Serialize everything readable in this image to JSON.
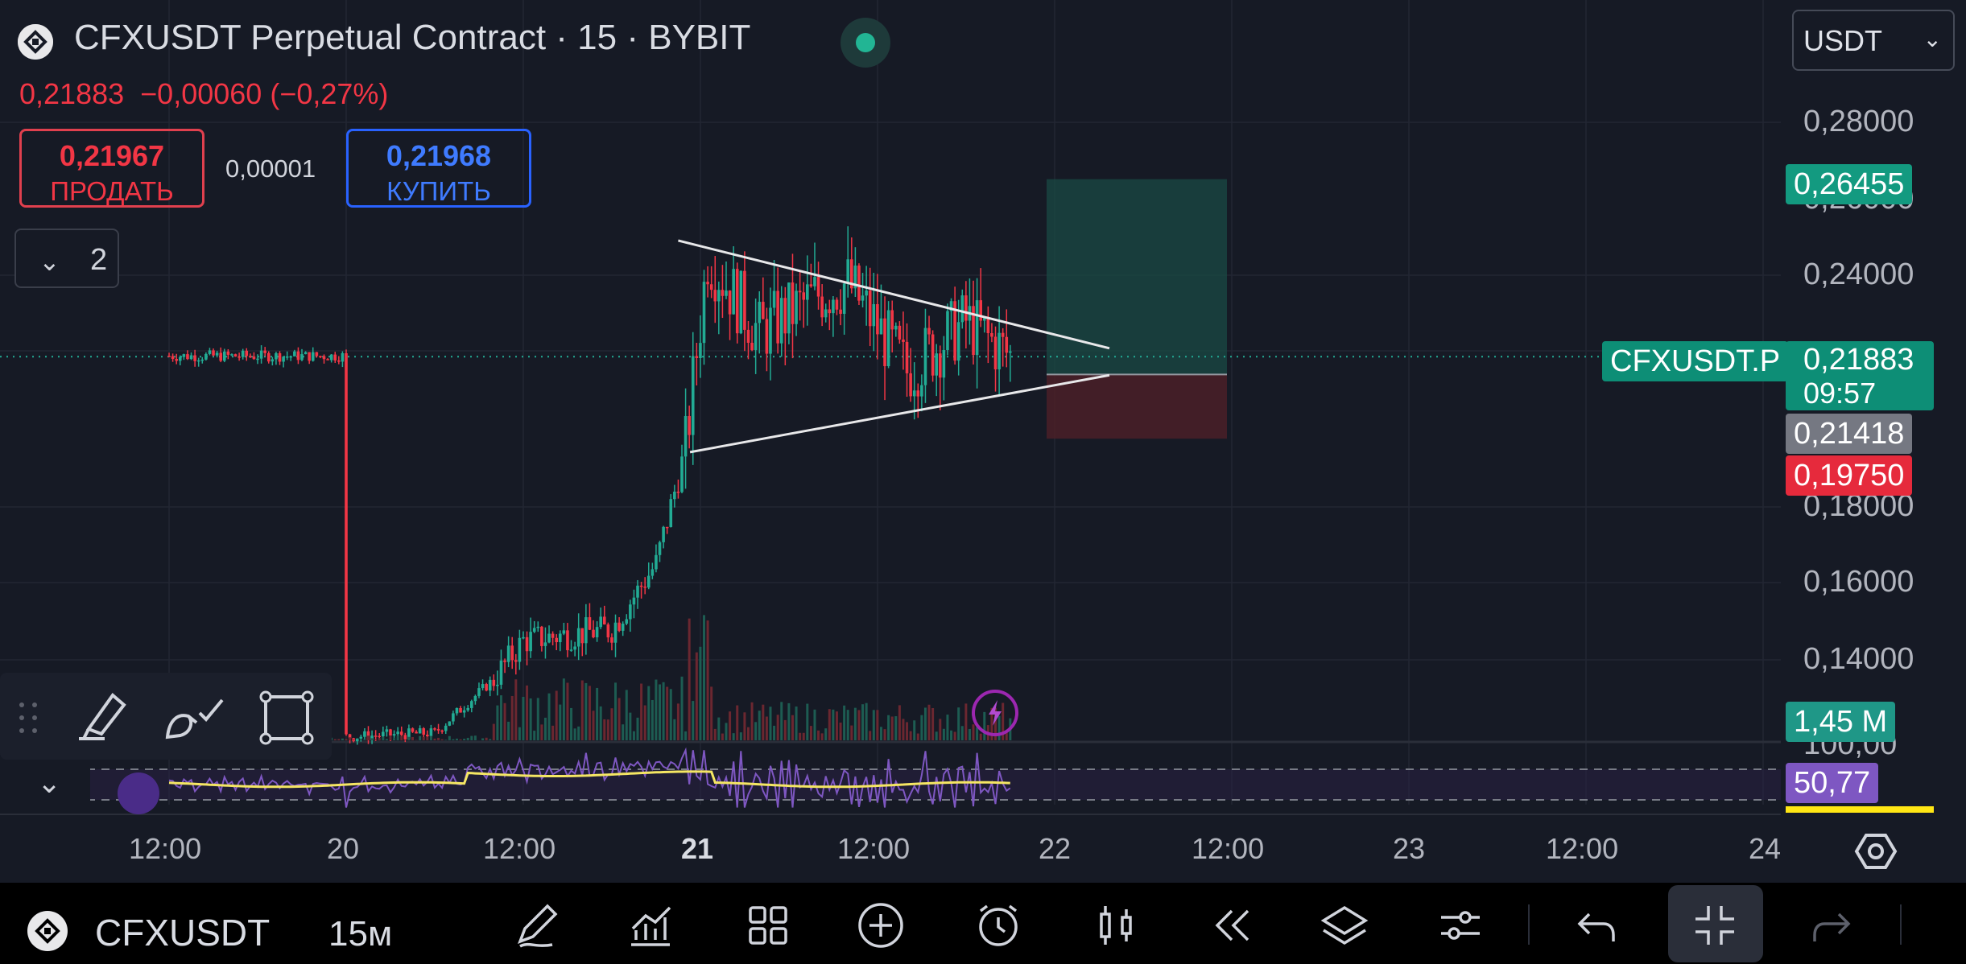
{
  "header": {
    "title": "CFXUSDT Perpetual Contract · 15 · BYBIT",
    "last_price": "0,21883",
    "change": "−0,00060 (−0,27%)",
    "sell_price": "0,21967",
    "sell_label": "ПРОДАТЬ",
    "spread": "0,00001",
    "buy_price": "0,21968",
    "buy_label": "КУПИТЬ",
    "indicators_count": "2",
    "currency": "USDT"
  },
  "colors": {
    "background": "#161a25",
    "up": "#22ab94",
    "down": "#f23645",
    "accent_blue": "#2962ff",
    "rsi": "#7e57c2"
  },
  "price_axis": {
    "labels": [
      "0,28000",
      "0,26000",
      "0,24000",
      "0,18000",
      "0,16000",
      "0,14000",
      "100,00"
    ]
  },
  "price_tags": {
    "target": "0,26455",
    "symbol": "CFXUSDT.P",
    "current": "0,21883",
    "countdown": "09:57",
    "entry": "0,21418",
    "stop": "0,19750",
    "volume": "1,45 M",
    "rsi": "50,77"
  },
  "time_axis": {
    "labels": [
      "12:00",
      "20",
      "12:00",
      "21",
      "12:00",
      "22",
      "12:00",
      "23",
      "12:00",
      "24"
    ]
  },
  "chart_data": {
    "type": "candlestick",
    "symbol": "CFXUSDT.P",
    "interval": "15",
    "exchange": "BYBIT",
    "x_ticks": [
      "12:00",
      "20",
      "12:00",
      "21",
      "12:00",
      "22",
      "12:00",
      "23",
      "12:00",
      "24"
    ],
    "ylim": [
      0.125,
      0.29
    ],
    "price_samples": [
      {
        "time": "20 00:00",
        "close": 0.12
      },
      {
        "time": "20 06:00",
        "close": 0.121
      },
      {
        "time": "20 10:00",
        "close": 0.135
      },
      {
        "time": "20 12:00",
        "close": 0.145
      },
      {
        "time": "20 18:00",
        "close": 0.148
      },
      {
        "time": "20 21:00",
        "close": 0.165
      },
      {
        "time": "20 23:00",
        "close": 0.195
      },
      {
        "time": "21 00:30",
        "close": 0.245
      },
      {
        "time": "21 04:00",
        "close": 0.225
      },
      {
        "time": "21 08:00",
        "close": 0.235
      },
      {
        "time": "21 10:00",
        "close": 0.238
      },
      {
        "time": "21 14:00",
        "close": 0.215
      },
      {
        "time": "21 18:00",
        "close": 0.228
      },
      {
        "time": "21 21:00",
        "close": 0.219
      }
    ],
    "triangle": {
      "upper": [
        [
          0.249
        ],
        [
          0.221
        ]
      ],
      "lower": [
        [
          0.194
        ],
        [
          0.214
        ]
      ]
    },
    "position": {
      "target": 0.26455,
      "entry": 0.21418,
      "stop": 0.1975
    },
    "rsi_value": 50.77,
    "volume_last": "1,45 M"
  },
  "drawing_toolbar": {
    "tools": [
      "highlighter-icon",
      "brush-icon",
      "rectangle-icon"
    ]
  },
  "bottom_bar": {
    "symbol": "CFXUSDT",
    "timeframe": "15м"
  }
}
